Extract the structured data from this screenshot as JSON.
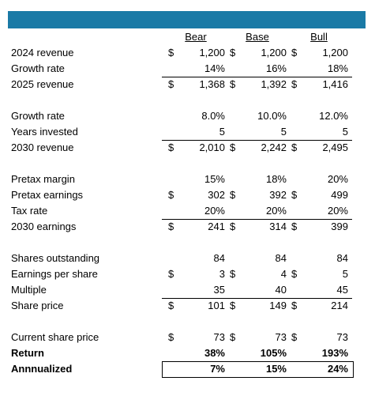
{
  "header": {
    "columns": [
      "Bear",
      "Base",
      "Bull"
    ]
  },
  "sections": [
    {
      "rows": [
        {
          "label": "2024 revenue",
          "currency": "$",
          "values": [
            "1,200",
            "1,200",
            "1,200"
          ]
        },
        {
          "label": "Growth rate",
          "values": [
            "14%",
            "16%",
            "18%"
          ]
        },
        {
          "label": "2025 revenue",
          "currency": "$",
          "values": [
            "1,368",
            "1,392",
            "1,416"
          ],
          "rule_above": true
        }
      ]
    },
    {
      "rows": [
        {
          "label": "Growth rate",
          "values": [
            "8.0%",
            "10.0%",
            "12.0%"
          ]
        },
        {
          "label": "Years invested",
          "values": [
            "5",
            "5",
            "5"
          ]
        },
        {
          "label": "2030 revenue",
          "currency": "$",
          "values": [
            "2,010",
            "2,242",
            "2,495"
          ],
          "rule_above": true
        }
      ]
    },
    {
      "rows": [
        {
          "label": "Pretax margin",
          "values": [
            "15%",
            "18%",
            "20%"
          ]
        },
        {
          "label": "Pretax earnings",
          "currency": "$",
          "values": [
            "302",
            "392",
            "499"
          ]
        },
        {
          "label": "Tax rate",
          "values": [
            "20%",
            "20%",
            "20%"
          ]
        },
        {
          "label": "2030 earnings",
          "currency": "$",
          "values": [
            "241",
            "314",
            "399"
          ],
          "rule_above": true
        }
      ]
    },
    {
      "rows": [
        {
          "label": "Shares outstanding",
          "values": [
            "84",
            "84",
            "84"
          ]
        },
        {
          "label": "Earnings per share",
          "currency": "$",
          "values": [
            "3",
            "4",
            "5"
          ]
        },
        {
          "label": "Multiple",
          "values": [
            "35",
            "40",
            "45"
          ]
        },
        {
          "label": "Share price",
          "currency": "$",
          "values": [
            "101",
            "149",
            "214"
          ],
          "rule_above": true
        }
      ]
    },
    {
      "rows": [
        {
          "label": "Current share price",
          "currency": "$",
          "values": [
            "73",
            "73",
            "73"
          ]
        },
        {
          "label": "Return",
          "values": [
            "38%",
            "105%",
            "193%"
          ],
          "bold": true
        },
        {
          "label": "Annnualized",
          "values": [
            "7%",
            "15%",
            "24%"
          ],
          "bold": true,
          "boxed": true
        }
      ]
    }
  ]
}
